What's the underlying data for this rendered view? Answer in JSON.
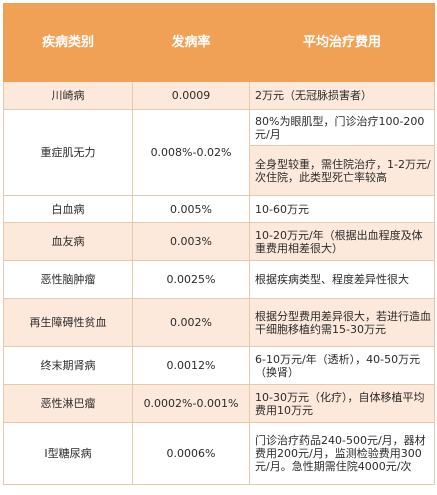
{
  "header": {
    "category": "疾病类别",
    "incidence": "发病率",
    "cost": "平均治疗费用"
  },
  "rows": [
    {
      "name": "川崎病",
      "rate": "0.0009",
      "cost": "2万元（无冠脉损害者）"
    },
    {
      "name": "重症肌无力",
      "rate": "0.008%-0.02%",
      "cost_a": "80%为眼肌型，门诊治疗100-200元/月",
      "cost_b": "全身型较重，需住院治疗，1-2万元/次住院，此类型死亡率较高"
    },
    {
      "name": "白血病",
      "rate": "0.005%",
      "cost": "10-60万元"
    },
    {
      "name": "血友病",
      "rate": "0.003%",
      "cost": "10-20万元/年（根据出血程度及体重费用相差很大）"
    },
    {
      "name": "恶性脑肿瘤",
      "rate": "0.0025%",
      "cost": "根据疾病类型、程度差异性很大"
    },
    {
      "name": "再生障碍性贫血",
      "rate": "0.002%",
      "cost": "根据分型费用差异很大，若进行造血干细胞移植约需15-30万元"
    },
    {
      "name": "终末期肾病",
      "rate": "0.0012%",
      "cost": "6-10万元/年（透析），40-50万元（换肾）"
    },
    {
      "name": "恶性淋巴瘤",
      "rate": "0.0002%-0.001%",
      "cost": "10-30万元（化疗），自体移植平均费用10万元"
    },
    {
      "name": "I型糖尿病",
      "rate": "0.0006%",
      "cost": "门诊治疗药品240-500元/月，器材费用200元/月，监测检验费用300元/月。急性期需住院4000元/次"
    }
  ]
}
